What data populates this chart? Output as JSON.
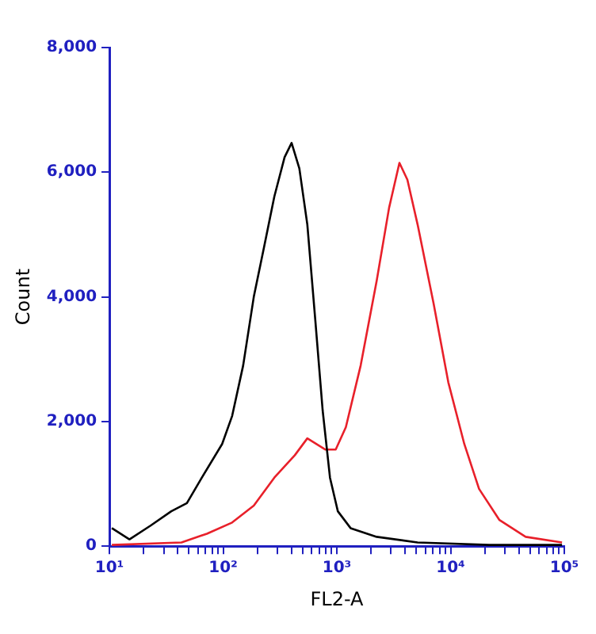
{
  "chart_data": {
    "type": "line",
    "xlabel": "FL2-A",
    "ylabel": "Count",
    "log": "x",
    "marker": "none",
    "legend": false,
    "grid": false,
    "xlim": [
      10,
      100000
    ],
    "xticks": [
      {
        "value": 10,
        "label": "10¹"
      },
      {
        "value": 20,
        "label": null
      },
      {
        "value": 30,
        "label": null
      },
      {
        "value": 40,
        "label": null
      },
      {
        "value": 50,
        "label": null
      },
      {
        "value": 60,
        "label": null
      },
      {
        "value": 70,
        "label": null
      },
      {
        "value": 80,
        "label": null
      },
      {
        "value": 90,
        "label": null
      },
      {
        "value": 100,
        "label": "10²"
      },
      {
        "value": 200,
        "label": null
      },
      {
        "value": 300,
        "label": null
      },
      {
        "value": 400,
        "label": null
      },
      {
        "value": 500,
        "label": null
      },
      {
        "value": 600,
        "label": null
      },
      {
        "value": 700,
        "label": null
      },
      {
        "value": 800,
        "label": null
      },
      {
        "value": 900,
        "label": null
      },
      {
        "value": 1000,
        "label": "10³"
      },
      {
        "value": 2000,
        "label": null
      },
      {
        "value": 3000,
        "label": null
      },
      {
        "value": 4000,
        "label": null
      },
      {
        "value": 5000,
        "label": null
      },
      {
        "value": 6000,
        "label": null
      },
      {
        "value": 7000,
        "label": null
      },
      {
        "value": 8000,
        "label": null
      },
      {
        "value": 9000,
        "label": null
      },
      {
        "value": 10000,
        "label": "10⁴"
      },
      {
        "value": 20000,
        "label": null
      },
      {
        "value": 30000,
        "label": null
      },
      {
        "value": 40000,
        "label": null
      },
      {
        "value": 50000,
        "label": null
      },
      {
        "value": 60000,
        "label": null
      },
      {
        "value": 70000,
        "label": null
      },
      {
        "value": 80000,
        "label": null
      },
      {
        "value": 90000,
        "label": null
      },
      {
        "value": 100000,
        "label": "10⁵"
      }
    ],
    "ylim": [
      0,
      8000
    ],
    "yticks": [
      {
        "value": 0,
        "label": "0"
      },
      {
        "value": 2000,
        "label": "2,000"
      },
      {
        "value": 4000,
        "label": "4,000"
      },
      {
        "value": 6000,
        "label": "6,000"
      },
      {
        "value": 8000,
        "label": "8,000"
      }
    ],
    "series": [
      {
        "color": "#000000",
        "x": [
          10.5,
          15,
          23,
          35,
          48,
          65,
          98,
          120,
          150,
          186,
          229,
          282,
          347,
          400,
          468,
          550,
          646,
          750,
          870,
          1020,
          1320,
          2240,
          5130,
          21900,
          95500
        ],
        "values": [
          290,
          110,
          330,
          560,
          690,
          1100,
          1640,
          2090,
          2900,
          4000,
          4800,
          5610,
          6240,
          6470,
          6060,
          5160,
          3630,
          2180,
          1100,
          560,
          290,
          150,
          60,
          20,
          20
        ]
      },
      {
        "color": "#e8202a",
        "x": [
          10.5,
          43,
          72,
          120,
          186,
          282,
          427,
          550,
          794,
          977,
          1200,
          1620,
          2240,
          2880,
          3550,
          4170,
          5130,
          7080,
          9550,
          13200,
          17800,
          26900,
          45700,
          95500
        ],
        "values": [
          20,
          60,
          200,
          380,
          650,
          1100,
          1460,
          1730,
          1550,
          1550,
          1910,
          2900,
          4260,
          5430,
          6150,
          5880,
          5160,
          3900,
          2630,
          1640,
          920,
          420,
          150,
          60
        ]
      }
    ]
  }
}
